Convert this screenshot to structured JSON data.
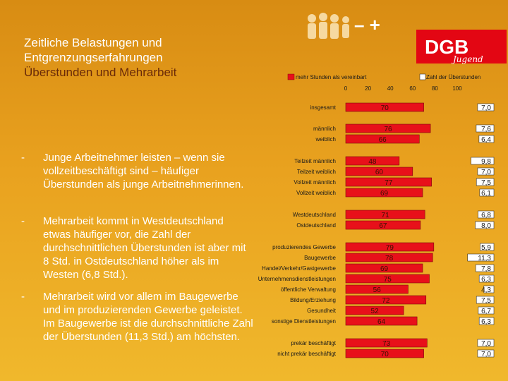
{
  "slide": {
    "title": {
      "line1": "Zeitliche Belastungen und",
      "line2": "Entgrenzungserfahrungen",
      "line3": "Überstunden und Mehrarbeit"
    },
    "bullets": [
      {
        "dash": "-",
        "text": "Junge Arbeitnehmer leisten – wenn sie vollzeitbeschäftigt sind – häufiger Überstunden als junge Arbeitnehmerinnen."
      },
      {
        "dash": "-",
        "text": "Mehrarbeit kommt in Westdeutschland etwas häufiger vor, die Zahl der durchschnittlichen Überstunden ist aber mit 8 Std. in Ostdeutschland höher als im Westen (6,8 Std.)."
      },
      {
        "dash": "-",
        "text": "Mehrarbeit wird vor allem im Baugewerbe und im produzierenden Gewerbe geleistet. Im Baugewerbe ist die durchschnittliche Zahl der Überstunden (11,3 Std.) am höchsten."
      }
    ],
    "logo": {
      "text": "DGB",
      "sub": "Jugend",
      "plus_minus": "– +"
    },
    "colors": {
      "accent_red": "#e30613",
      "bar_red": "#e8101a",
      "title_brown": "#6a2a08"
    }
  },
  "chart_data": {
    "type": "bar",
    "orientation": "horizontal",
    "series": [
      {
        "name": "mehr Stunden als vereinbart",
        "unit": "%",
        "values": [
          70,
          76,
          66,
          48,
          60,
          77,
          69,
          71,
          67,
          79,
          78,
          69,
          75,
          56,
          72,
          52,
          64,
          73,
          70
        ],
        "labels": [
          "70",
          "76",
          "66",
          "48",
          "60",
          "77",
          "69",
          "71",
          "67",
          "79",
          "78",
          "69",
          "75",
          "56",
          "72",
          "52",
          "64",
          "73",
          "70"
        ]
      },
      {
        "name": "Zahl der Überstunden",
        "unit": "Std.",
        "values": [
          7.0,
          7.6,
          6.4,
          9.8,
          7.0,
          7.5,
          6.1,
          6.8,
          8.0,
          5.9,
          11.3,
          7.8,
          6.3,
          4.3,
          7.5,
          6.7,
          6.3,
          7.0,
          7.0
        ],
        "labels": [
          "7,0",
          "7,6",
          "6,4",
          "9,8",
          "7,0",
          "7,5",
          "6,1",
          "6,8",
          "8,0",
          "5,9",
          "11,3",
          "7,8",
          "6,3",
          "4,3",
          "7,5",
          "6,7",
          "6,3",
          "7,0",
          "7,0"
        ]
      }
    ],
    "categories": [
      "insgesamt",
      "männlich",
      "weiblich",
      "Teilzeit männlich",
      "Teilzeit weiblich",
      "Vollzeit männlich",
      "Vollzeit weiblich",
      "Westdeutschland",
      "Ostdeutschland",
      "produzierendes Gewerbe",
      "Baugewerbe",
      "Handel/Verkehr/Gastgewerbe",
      "Unternehmensdienstleistungen",
      "öffentliche Verwaltung",
      "Bildung/Erziehung",
      "Gesundheit",
      "sonstige Dienstleistungen",
      "prekär beschäftigt",
      "nicht prekär beschäftigt"
    ],
    "xaxis": {
      "ticks": [
        "0",
        "20",
        "40",
        "60",
        "80",
        "100"
      ],
      "range": [
        0,
        100
      ]
    },
    "legend": {
      "position": "top"
    }
  }
}
